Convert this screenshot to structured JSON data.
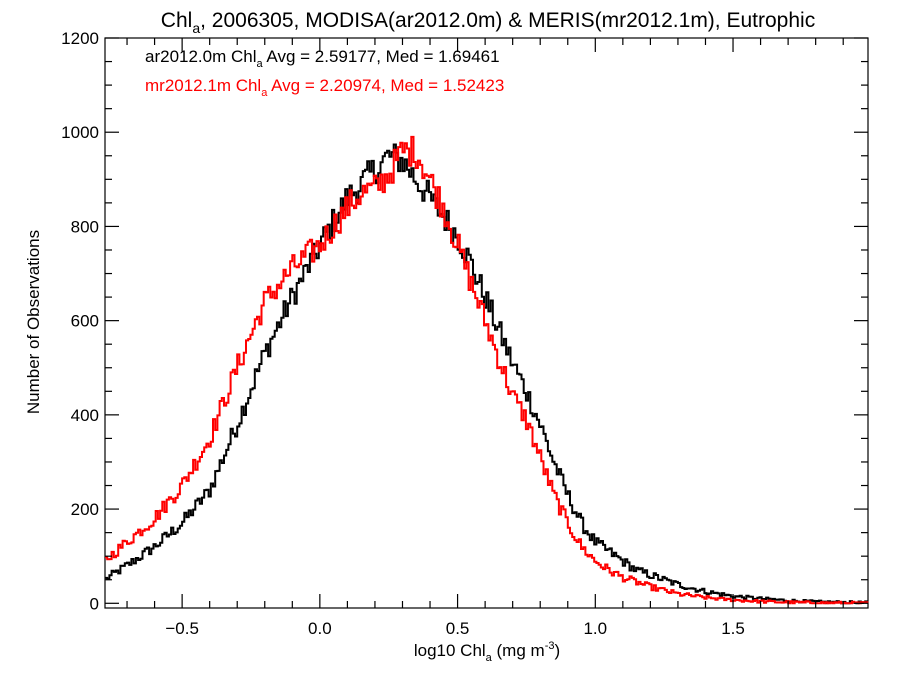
{
  "chart_data": {
    "type": "line",
    "title": {
      "prefix": "Chl",
      "sub": "a",
      "rest": ", 2006305, MODISA(ar2012.0m) & MERIS(mr2012.1m), Eutrophic"
    },
    "xlabel": {
      "prefix": "log10 Chl",
      "sub": "a",
      "rest": " (mg m",
      "sup": "-3",
      "close": ")"
    },
    "ylabel": "Number of Observations",
    "xlim": [
      -0.78,
      1.99
    ],
    "ylim": [
      -10,
      1200
    ],
    "xticks": [
      -0.5,
      0.0,
      0.5,
      1.0,
      1.5
    ],
    "xtick_labels": [
      "−0.5",
      "0.0",
      "0.5",
      "1.0",
      "1.5"
    ],
    "yticks": [
      0,
      200,
      400,
      600,
      800,
      1000,
      1200
    ],
    "ytick_labels": [
      "0",
      "200",
      "400",
      "600",
      "800",
      "1000",
      "1200"
    ],
    "grid": false,
    "legend": [
      {
        "color": "#000000",
        "prefix": "ar2012.0m Chl",
        "sub": "a",
        "rest": " Avg = 2.59177, Med = 1.69461"
      },
      {
        "color": "#ff0000",
        "prefix": "mr2012.1m Chl",
        "sub": "a",
        "rest": " Avg = 2.20974, Med = 1.52423"
      }
    ],
    "series": [
      {
        "color": "#000000",
        "x": [
          -0.78,
          -0.7,
          -0.6,
          -0.5,
          -0.4,
          -0.3,
          -0.2,
          -0.1,
          0.0,
          0.1,
          0.15,
          0.2,
          0.25,
          0.3,
          0.35,
          0.4,
          0.45,
          0.5,
          0.55,
          0.6,
          0.65,
          0.7,
          0.75,
          0.8,
          0.85,
          0.9,
          0.95,
          1.0,
          1.05,
          1.1,
          1.15,
          1.2,
          1.3,
          1.4,
          1.5,
          1.6,
          1.7,
          1.8,
          1.99
        ],
        "y": [
          50,
          80,
          120,
          170,
          240,
          380,
          530,
          650,
          760,
          860,
          890,
          920,
          950,
          940,
          900,
          860,
          820,
          780,
          720,
          650,
          580,
          510,
          450,
          380,
          300,
          230,
          170,
          130,
          110,
          90,
          70,
          60,
          40,
          25,
          15,
          10,
          6,
          3,
          1
        ]
      },
      {
        "color": "#ff0000",
        "x": [
          -0.78,
          -0.7,
          -0.6,
          -0.5,
          -0.4,
          -0.3,
          -0.2,
          -0.1,
          0.0,
          0.1,
          0.15,
          0.2,
          0.25,
          0.3,
          0.35,
          0.4,
          0.45,
          0.5,
          0.55,
          0.6,
          0.65,
          0.7,
          0.75,
          0.8,
          0.85,
          0.9,
          0.95,
          1.0,
          1.05,
          1.1,
          1.15,
          1.2,
          1.3,
          1.4,
          1.5,
          1.6,
          1.7,
          1.8,
          1.99
        ],
        "y": [
          90,
          130,
          180,
          250,
          350,
          500,
          640,
          710,
          760,
          840,
          870,
          880,
          910,
          960,
          960,
          900,
          840,
          760,
          680,
          600,
          520,
          440,
          390,
          310,
          230,
          170,
          120,
          90,
          70,
          55,
          45,
          35,
          20,
          12,
          7,
          4,
          2,
          1,
          0
        ]
      }
    ]
  }
}
